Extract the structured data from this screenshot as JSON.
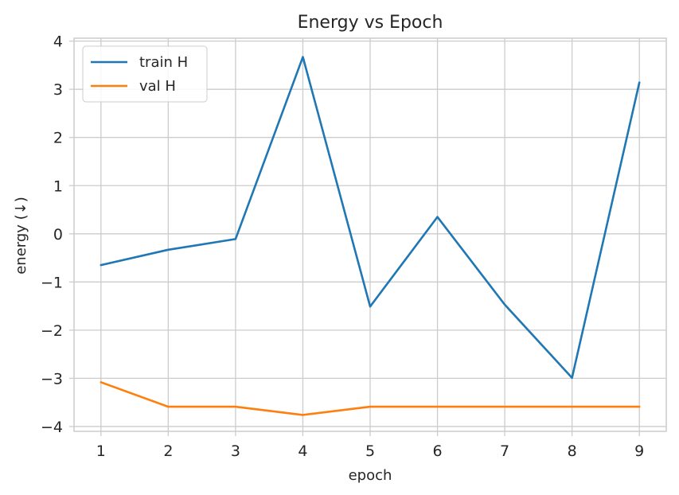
{
  "chart_data": {
    "type": "line",
    "title": "Energy vs Epoch",
    "xlabel": "epoch",
    "ylabel": "energy (↓)",
    "x": [
      1,
      2,
      3,
      4,
      5,
      6,
      7,
      8,
      9
    ],
    "xlim": [
      0.6,
      9.4
    ],
    "ylim": [
      -4.1,
      4.06
    ],
    "x_ticks": [
      "1",
      "2",
      "3",
      "4",
      "5",
      "6",
      "7",
      "8",
      "9"
    ],
    "y_ticks": [
      {
        "value": 4,
        "label": "4"
      },
      {
        "value": 3,
        "label": "3"
      },
      {
        "value": 2,
        "label": "2"
      },
      {
        "value": 1,
        "label": "1"
      },
      {
        "value": 0,
        "label": "0"
      },
      {
        "value": -1,
        "label": "−1"
      },
      {
        "value": -2,
        "label": "−2"
      },
      {
        "value": -3,
        "label": "−3"
      },
      {
        "value": -4,
        "label": "−4"
      }
    ],
    "grid": true,
    "legend_position": "top-left",
    "series": [
      {
        "name": "train H",
        "color": "#1f77b4",
        "values": [
          -0.65,
          -0.33,
          -0.11,
          3.67,
          -1.51,
          0.35,
          -1.47,
          -2.99,
          3.14
        ]
      },
      {
        "name": "val H",
        "color": "#ff7f0e",
        "values": [
          -3.08,
          -3.59,
          -3.59,
          -3.76,
          -3.59,
          -3.59,
          -3.59,
          -3.59,
          -3.59
        ]
      }
    ]
  }
}
